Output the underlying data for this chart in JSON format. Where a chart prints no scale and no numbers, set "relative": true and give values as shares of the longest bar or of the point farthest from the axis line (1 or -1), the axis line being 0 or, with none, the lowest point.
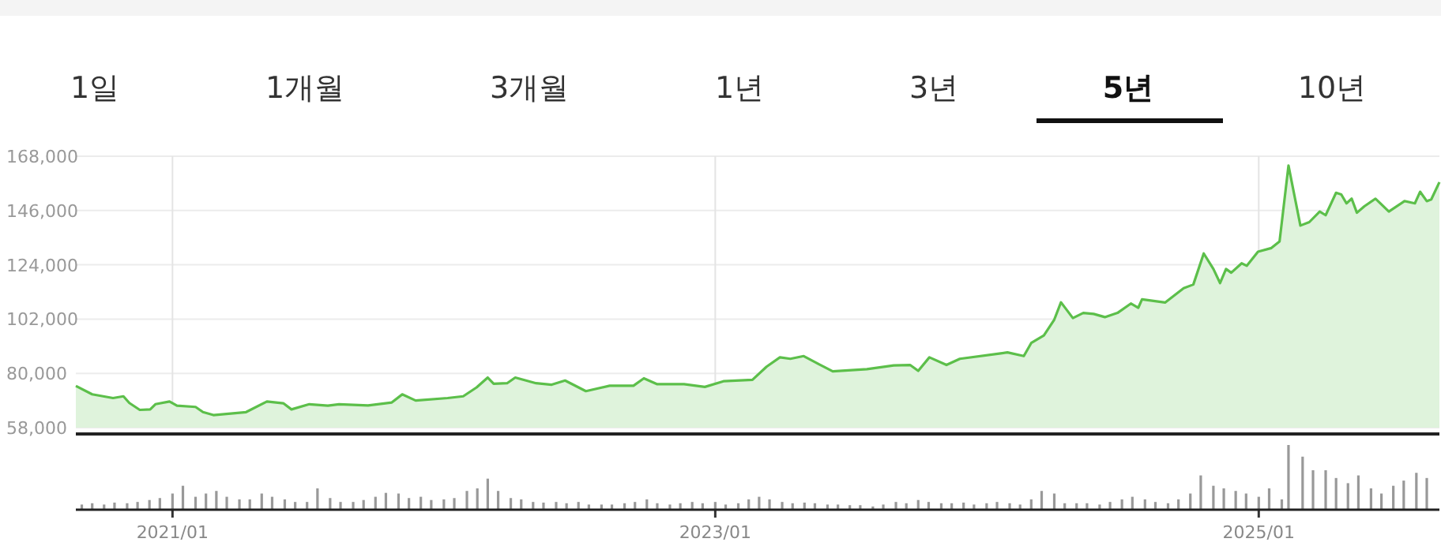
{
  "chart_data": [
    {
      "type": "area",
      "annotations": [
        "1일",
        "1개월",
        "3개월",
        "1년",
        "3년",
        "**5년**",
        "10년"
      ],
      "color": "#5cbf4a",
      "grid": true,
      "tick_labels": "y",
      "xlim": [
        "2020-08-24",
        "2025-09-01"
      ],
      "xticks": [
        {
          "value": "2021-01-01",
          "label": null
        },
        {
          "value": "2023-01-01",
          "label": null
        },
        {
          "value": "2025-01-01",
          "label": null
        }
      ],
      "ylim": [
        58000,
        168000
      ],
      "yticks": [
        {
          "value": 58000,
          "label": "58,000"
        },
        {
          "value": 80000,
          "label": "80,000"
        },
        {
          "value": 102000,
          "label": "102,000"
        },
        {
          "value": 124000,
          "label": "124,000"
        },
        {
          "value": 146000,
          "label": "146,000"
        },
        {
          "value": 168000,
          "label": "168,000"
        }
      ],
      "x": [
        "2020-08-24",
        "2020-09-15",
        "2020-10-13",
        "2020-10-27",
        "2020-11-04",
        "2020-11-18",
        "2020-12-02",
        "2020-12-09",
        "2020-12-28",
        "2021-01-07",
        "2021-02-01",
        "2021-02-11",
        "2021-02-25",
        "2021-04-10",
        "2021-05-08",
        "2021-05-30",
        "2021-06-10",
        "2021-07-04",
        "2021-07-29",
        "2021-08-13",
        "2021-09-21",
        "2021-10-23",
        "2021-11-06",
        "2021-11-24",
        "2022-01-06",
        "2022-01-27",
        "2022-02-14",
        "2022-03-01",
        "2022-03-09",
        "2022-03-27",
        "2022-04-07",
        "2022-05-05",
        "2022-05-26",
        "2022-06-13",
        "2022-07-11",
        "2022-08-12",
        "2022-09-13",
        "2022-09-27",
        "2022-10-15",
        "2022-11-20",
        "2022-12-18",
        "2023-01-12",
        "2023-02-20",
        "2023-03-11",
        "2023-03-29",
        "2023-04-12",
        "2023-04-30",
        "2023-05-21",
        "2023-06-08",
        "2023-07-24",
        "2023-08-29",
        "2023-09-20",
        "2023-10-01",
        "2023-10-16",
        "2023-11-08",
        "2023-11-26",
        "2024-01-18",
        "2024-01-29",
        "2024-02-20",
        "2024-03-01",
        "2024-03-18",
        "2024-04-01",
        "2024-04-10",
        "2024-04-26",
        "2024-05-10",
        "2024-05-24",
        "2024-06-08",
        "2024-06-25",
        "2024-07-13",
        "2024-07-23",
        "2024-07-28",
        "2024-08-28",
        "2024-09-22",
        "2024-10-05",
        "2024-10-19",
        "2024-11-01",
        "2024-11-10",
        "2024-11-18",
        "2024-11-25",
        "2024-12-09",
        "2024-12-16",
        "2024-12-31",
        "2025-01-18",
        "2025-01-29",
        "2025-02-10",
        "2025-02-26",
        "2025-03-10",
        "2025-03-24",
        "2025-04-01",
        "2025-04-15",
        "2025-04-22",
        "2025-04-29",
        "2025-05-06",
        "2025-05-13",
        "2025-05-23",
        "2025-06-07",
        "2025-06-25",
        "2025-07-16",
        "2025-07-30",
        "2025-08-06",
        "2025-08-15",
        "2025-08-21",
        "2025-09-01"
      ],
      "values": [
        74900,
        71500,
        70000,
        70700,
        68000,
        65200,
        65400,
        67500,
        68600,
        66900,
        66400,
        64300,
        63100,
        64300,
        68600,
        67900,
        65400,
        67500,
        66900,
        67500,
        67000,
        68200,
        71500,
        69000,
        70000,
        70700,
        74300,
        78300,
        75800,
        76000,
        78300,
        76000,
        75400,
        77100,
        72800,
        75000,
        75000,
        78000,
        75600,
        75600,
        74500,
        76800,
        77400,
        82700,
        86500,
        85900,
        87000,
        83600,
        80800,
        81700,
        83200,
        83400,
        81000,
        86500,
        83400,
        85900,
        88000,
        88500,
        87000,
        92300,
        95400,
        101800,
        108800,
        102400,
        104500,
        104100,
        102800,
        104500,
        108300,
        106600,
        110000,
        108700,
        114500,
        116000,
        128600,
        122300,
        116600,
        122300,
        120800,
        124600,
        123600,
        129300,
        130800,
        133500,
        164200,
        139900,
        141300,
        145600,
        144100,
        153200,
        152500,
        148900,
        150800,
        145100,
        147700,
        150800,
        145600,
        149800,
        148900,
        153600,
        149800,
        150500,
        157500
      ]
    },
    {
      "type": "bar",
      "relative": true,
      "color": "#999999",
      "tick_labels": "x",
      "xlim": [
        "2020-08-24",
        "2025-09-01"
      ],
      "xticks": [
        {
          "value": "2021-01-01",
          "label": "2021/01"
        },
        {
          "value": "2023-01-01",
          "label": "2023/01"
        },
        {
          "value": "2025-01-01",
          "label": "2025/01"
        }
      ],
      "x": [
        "2020-09-01",
        "2020-09-15",
        "2020-10-01",
        "2020-10-15",
        "2020-11-01",
        "2020-11-15",
        "2020-12-01",
        "2020-12-15",
        "2021-01-01",
        "2021-01-15",
        "2021-02-01",
        "2021-02-15",
        "2021-03-01",
        "2021-03-15",
        "2021-04-01",
        "2021-04-15",
        "2021-05-01",
        "2021-05-15",
        "2021-06-01",
        "2021-06-15",
        "2021-07-01",
        "2021-07-15",
        "2021-08-01",
        "2021-08-15",
        "2021-09-01",
        "2021-09-15",
        "2021-10-01",
        "2021-10-15",
        "2021-11-01",
        "2021-11-15",
        "2021-12-01",
        "2021-12-15",
        "2022-01-01",
        "2022-01-15",
        "2022-02-01",
        "2022-02-15",
        "2022-03-01",
        "2022-03-15",
        "2022-04-01",
        "2022-04-15",
        "2022-05-01",
        "2022-05-15",
        "2022-06-01",
        "2022-06-15",
        "2022-07-01",
        "2022-07-15",
        "2022-08-01",
        "2022-08-15",
        "2022-09-01",
        "2022-09-15",
        "2022-10-01",
        "2022-10-15",
        "2022-11-01",
        "2022-11-15",
        "2022-12-01",
        "2022-12-15",
        "2023-01-01",
        "2023-01-15",
        "2023-02-01",
        "2023-02-15",
        "2023-03-01",
        "2023-03-15",
        "2023-04-01",
        "2023-04-15",
        "2023-05-01",
        "2023-05-15",
        "2023-06-01",
        "2023-06-15",
        "2023-07-01",
        "2023-07-15",
        "2023-08-01",
        "2023-08-15",
        "2023-09-01",
        "2023-09-15",
        "2023-10-01",
        "2023-10-15",
        "2023-11-01",
        "2023-11-15",
        "2023-12-01",
        "2023-12-15",
        "2024-01-01",
        "2024-01-15",
        "2024-02-01",
        "2024-02-15",
        "2024-03-01",
        "2024-03-15",
        "2024-04-01",
        "2024-04-15",
        "2024-05-01",
        "2024-05-15",
        "2024-06-01",
        "2024-06-15",
        "2024-07-01",
        "2024-07-15",
        "2024-08-01",
        "2024-08-15",
        "2024-09-01",
        "2024-09-15",
        "2024-10-01",
        "2024-10-15",
        "2024-11-01",
        "2024-11-15",
        "2024-12-01",
        "2024-12-15",
        "2025-01-01",
        "2025-01-15",
        "2025-02-01",
        "2025-02-10",
        "2025-03-01",
        "2025-03-15",
        "2025-04-01",
        "2025-04-15",
        "2025-05-01",
        "2025-05-15",
        "2025-06-01",
        "2025-06-15",
        "2025-07-01",
        "2025-07-15",
        "2025-08-01",
        "2025-08-15"
      ],
      "values": [
        0.08,
        0.1,
        0.08,
        0.11,
        0.1,
        0.12,
        0.15,
        0.18,
        0.25,
        0.37,
        0.2,
        0.25,
        0.29,
        0.2,
        0.16,
        0.16,
        0.25,
        0.2,
        0.16,
        0.12,
        0.12,
        0.33,
        0.18,
        0.12,
        0.12,
        0.15,
        0.2,
        0.26,
        0.25,
        0.18,
        0.2,
        0.15,
        0.16,
        0.18,
        0.29,
        0.33,
        0.48,
        0.29,
        0.18,
        0.16,
        0.12,
        0.11,
        0.12,
        0.1,
        0.12,
        0.08,
        0.08,
        0.08,
        0.1,
        0.12,
        0.16,
        0.1,
        0.08,
        0.1,
        0.12,
        0.1,
        0.12,
        0.08,
        0.1,
        0.16,
        0.2,
        0.16,
        0.12,
        0.1,
        0.11,
        0.1,
        0.08,
        0.08,
        0.07,
        0.07,
        0.05,
        0.08,
        0.12,
        0.1,
        0.15,
        0.12,
        0.1,
        0.1,
        0.11,
        0.08,
        0.1,
        0.12,
        0.1,
        0.08,
        0.16,
        0.29,
        0.25,
        0.1,
        0.1,
        0.1,
        0.08,
        0.12,
        0.16,
        0.2,
        0.16,
        0.12,
        0.1,
        0.16,
        0.25,
        0.53,
        0.37,
        0.33,
        0.29,
        0.25,
        0.2,
        0.33,
        0.16,
        1,
        0.82,
        0.61,
        0.61,
        0.49,
        0.41,
        0.53,
        0.33,
        0.25,
        0.37,
        0.45,
        0.57,
        0.49
      ]
    }
  ]
}
